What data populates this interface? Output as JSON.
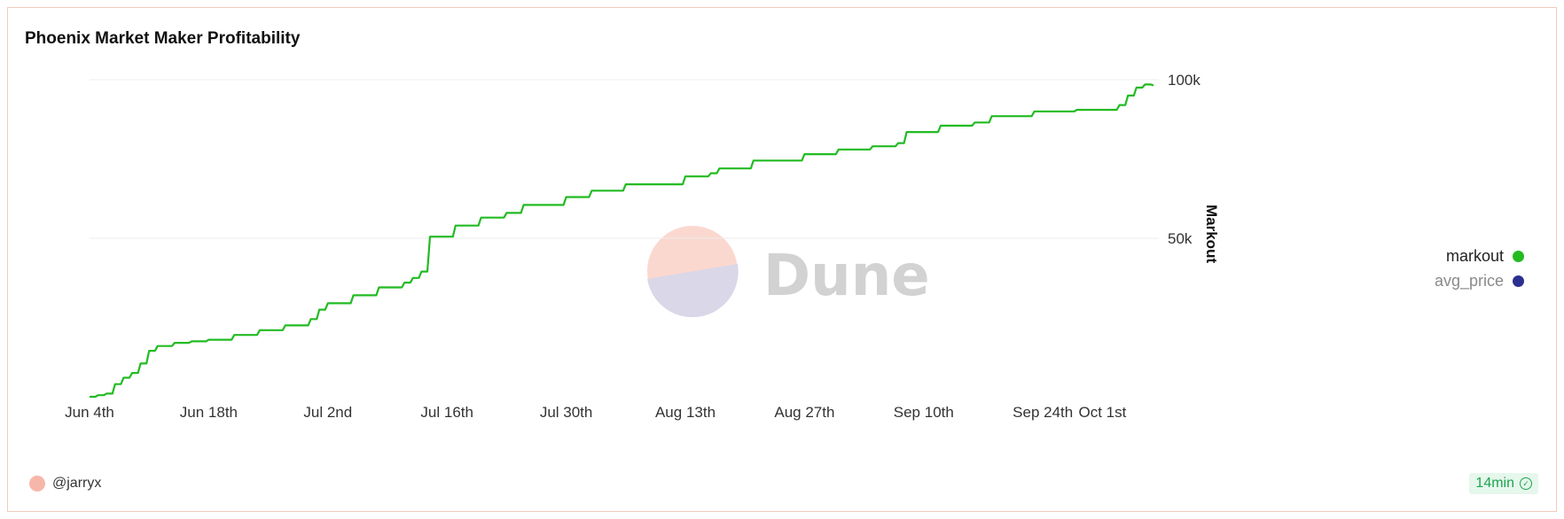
{
  "title": "Phoenix Market Maker Profitability",
  "author": "@jarryx",
  "refresh_badge": "14min",
  "watermark": "Dune",
  "colors": {
    "markout": "#22bb22",
    "avg_price": "#2b2f8f",
    "grid": "#ececec"
  },
  "legend": [
    {
      "name": "markout",
      "color": "#22bb22",
      "active": true
    },
    {
      "name": "avg_price",
      "color": "#2b2f8f",
      "active": false
    }
  ],
  "chart_data": {
    "type": "line",
    "title": "Phoenix Market Maker Profitability",
    "xlabel": "",
    "ylabel": "Markout",
    "y_axis_side": "right",
    "xlim": [
      "2023-06-04",
      "2023-10-07"
    ],
    "ylim": [
      0,
      100000
    ],
    "x_ticks": [
      "Jun 4th",
      "Jun 18th",
      "Jul 2nd",
      "Jul 16th",
      "Jul 30th",
      "Aug 13th",
      "Aug 27th",
      "Sep 10th",
      "Sep 24th",
      "Oct 1st"
    ],
    "x_tick_dates": [
      "2023-06-04",
      "2023-06-18",
      "2023-07-02",
      "2023-07-16",
      "2023-07-30",
      "2023-08-13",
      "2023-08-27",
      "2023-09-10",
      "2023-09-24",
      "2023-10-01"
    ],
    "y_ticks": [
      {
        "label": "50k",
        "value": 50000
      },
      {
        "label": "100k",
        "value": 100000
      }
    ],
    "grid": true,
    "legend_position": "right",
    "series": [
      {
        "name": "markout",
        "color": "#22bb22",
        "x": [
          "2023-06-04",
          "2023-06-05",
          "2023-06-06",
          "2023-06-07",
          "2023-06-08",
          "2023-06-09",
          "2023-06-10",
          "2023-06-11",
          "2023-06-12",
          "2023-06-14",
          "2023-06-16",
          "2023-06-18",
          "2023-06-21",
          "2023-06-24",
          "2023-06-27",
          "2023-06-30",
          "2023-07-01",
          "2023-07-02",
          "2023-07-05",
          "2023-07-08",
          "2023-07-11",
          "2023-07-12",
          "2023-07-13",
          "2023-07-14",
          "2023-07-17",
          "2023-07-20",
          "2023-07-23",
          "2023-07-25",
          "2023-07-30",
          "2023-08-02",
          "2023-08-06",
          "2023-08-13",
          "2023-08-16",
          "2023-08-17",
          "2023-08-21",
          "2023-08-27",
          "2023-08-31",
          "2023-09-04",
          "2023-09-07",
          "2023-09-08",
          "2023-09-11",
          "2023-09-12",
          "2023-09-16",
          "2023-09-18",
          "2023-09-23",
          "2023-09-28",
          "2023-10-03",
          "2023-10-04",
          "2023-10-05",
          "2023-10-06",
          "2023-10-07"
        ],
        "y": [
          0,
          500,
          1000,
          4000,
          6000,
          7500,
          10500,
          14500,
          16000,
          17000,
          17500,
          18000,
          19500,
          21000,
          22500,
          24500,
          27500,
          29500,
          32000,
          34500,
          36000,
          37500,
          39500,
          50500,
          54000,
          56500,
          58000,
          60500,
          63000,
          65000,
          67000,
          69500,
          70500,
          72000,
          74500,
          76500,
          78000,
          79000,
          80000,
          83500,
          83500,
          85500,
          86500,
          88500,
          90000,
          90500,
          92000,
          95000,
          97500,
          98500,
          98200
        ]
      },
      {
        "name": "avg_price",
        "color": "#2b2f8f",
        "x": [],
        "y": []
      }
    ]
  }
}
